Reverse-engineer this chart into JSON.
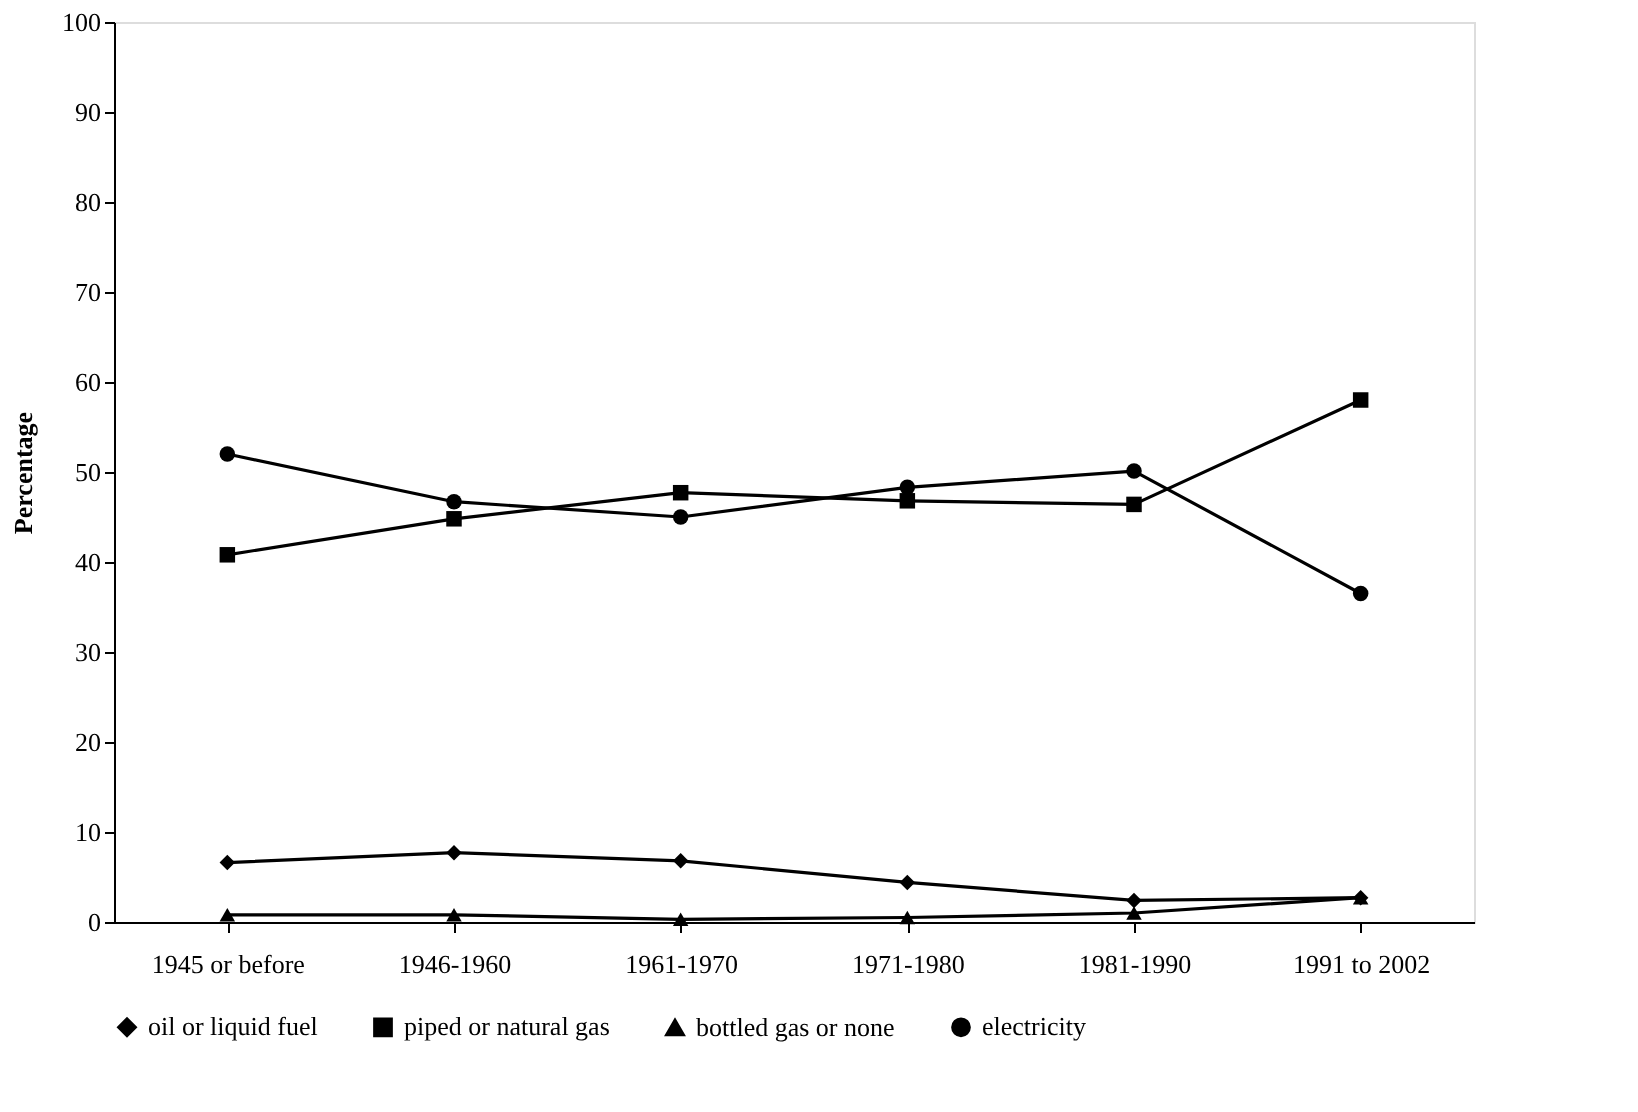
{
  "chart_data": {
    "type": "line",
    "ylabel": "Percentage",
    "categories": [
      "1945 or before",
      "1946-1960",
      "1961-1970",
      "1971-1980",
      "1981-1990",
      "1991 to 2002"
    ],
    "series": [
      {
        "name": "oil or liquid fuel",
        "color": "#000000",
        "marker": "diamond",
        "values": [
          6.6,
          7.7,
          6.8,
          4.4,
          2.4,
          2.7
        ]
      },
      {
        "name": "piped or natural gas",
        "color": "#000000",
        "marker": "square",
        "values": [
          40.8,
          44.8,
          47.7,
          46.8,
          46.4,
          58.0
        ]
      },
      {
        "name": "bottled gas or none",
        "color": "#000000",
        "marker": "triangle",
        "values": [
          0.8,
          0.8,
          0.3,
          0.5,
          1.0,
          2.7
        ]
      },
      {
        "name": "electricity",
        "color": "#000000",
        "marker": "circle",
        "values": [
          52.0,
          46.7,
          45.0,
          48.3,
          50.1,
          36.5
        ]
      }
    ],
    "ylim": [
      0,
      100
    ],
    "yticks": [
      0,
      10,
      20,
      30,
      40,
      50,
      60,
      70,
      80,
      90,
      100
    ],
    "grid": false,
    "legend": "bottom"
  }
}
